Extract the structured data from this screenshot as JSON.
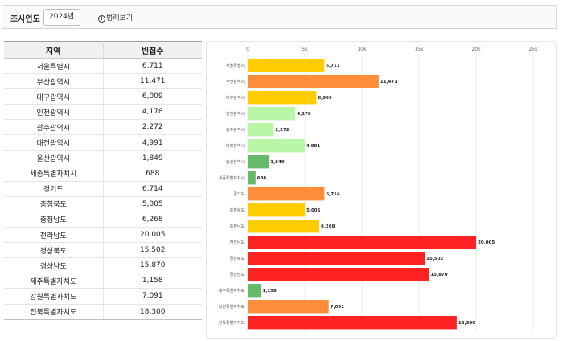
{
  "toolbar": {
    "year_label": "조사연도",
    "year_value": "2024년",
    "legend_label": "범례보기"
  },
  "table": {
    "headers": [
      "지역",
      "빈집수"
    ],
    "rows": [
      [
        "서울특별시",
        "6,711"
      ],
      [
        "부산광역시",
        "11,471"
      ],
      [
        "대구광역시",
        "6,009"
      ],
      [
        "인천광역시",
        "4,178"
      ],
      [
        "광주광역시",
        "2,272"
      ],
      [
        "대전광역시",
        "4,991"
      ],
      [
        "울산광역시",
        "1,849"
      ],
      [
        "세종특별자치시",
        "688"
      ],
      [
        "경기도",
        "6,714"
      ],
      [
        "충청북도",
        "5,005"
      ],
      [
        "충청남도",
        "6,268"
      ],
      [
        "전라남도",
        "20,005"
      ],
      [
        "경상북도",
        "15,502"
      ],
      [
        "경상남도",
        "15,870"
      ],
      [
        "제주특별자치도",
        "1,158"
      ],
      [
        "강원특별자치도",
        "7,091"
      ],
      [
        "전북특별자치도",
        "18,300"
      ]
    ]
  },
  "chart_data": {
    "type": "bar",
    "orientation": "horizontal",
    "categories": [
      "서울특별시",
      "부산광역시",
      "대구광역시",
      "인천광역시",
      "광주광역시",
      "대전광역시",
      "울산광역시",
      "세종특별자치시",
      "경기도",
      "충청북도",
      "충청남도",
      "전라남도",
      "경상북도",
      "경상남도",
      "제주특별자치도",
      "강원특별자치도",
      "전북특별자치도"
    ],
    "values": [
      6711,
      11471,
      6009,
      4178,
      2272,
      4991,
      1849,
      688,
      6714,
      5005,
      6268,
      20005,
      15502,
      15870,
      1158,
      7091,
      18300
    ],
    "value_labels": [
      "6,711",
      "11,471",
      "6,009",
      "4,178",
      "2,272",
      "4,991",
      "1,849",
      "688",
      "6,714",
      "5,005",
      "6,268",
      "20,005",
      "15,502",
      "15,870",
      "1,158",
      "7,091",
      "18,300"
    ],
    "xlim": [
      0,
      25000
    ],
    "xticks": [
      0,
      5000,
      10000,
      15000,
      20000,
      25000
    ],
    "xtick_labels": [
      "0",
      "5k",
      "10k",
      "15k",
      "20k",
      "25k"
    ],
    "grid": true,
    "colors": {
      "very_low": "#66bb6a",
      "low": "#b9f6a8",
      "mid": "#ffcc00",
      "high": "#ff8c3a",
      "very_high": "#ff2222"
    },
    "bar_colors": [
      "#ffcc00",
      "#ff8c3a",
      "#ffcc00",
      "#b9f6a8",
      "#b9f6a8",
      "#b9f6a8",
      "#66bb6a",
      "#66bb6a",
      "#ff8c3a",
      "#ffcc00",
      "#ffcc00",
      "#ff2222",
      "#ff2222",
      "#ff2222",
      "#66bb6a",
      "#ff8c3a",
      "#ff2222"
    ]
  }
}
